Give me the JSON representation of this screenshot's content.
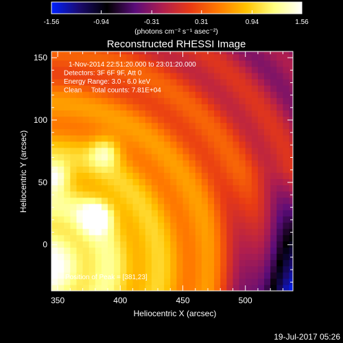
{
  "chart_data": {
    "type": "heatmap",
    "title": "Reconstructed RHESSI Image",
    "xlabel": "Heliocentric X (arcsec)",
    "ylabel": "Heliocentric Y (arcsec)",
    "xlim": [
      345,
      538
    ],
    "ylim": [
      -37,
      155
    ],
    "xticks": [
      350,
      400,
      450,
      500
    ],
    "yticks": [
      0,
      50,
      100,
      150
    ],
    "colorbar": {
      "range": [
        -1.56,
        1.56
      ],
      "ticks": [
        "-1.56",
        "-0.94",
        "-0.31",
        "0.31",
        "0.94",
        "1.56"
      ],
      "units": "(photons cm⁻² s⁻¹ asec⁻²)",
      "colormap": [
        "#0020ff",
        "#1a0a6e",
        "#000000",
        "#5a0c7a",
        "#b01e4e",
        "#e83a14",
        "#ff7a00",
        "#ffc200",
        "#ffff80",
        "#ffffff"
      ]
    },
    "annotations": [
      "1-Nov-2014 22:51:20.000 to 23:01:20.000",
      "Detectors: 3F 6F 9F, Att 0",
      "Energy Range: 3.0 - 6.0 keV",
      "Clean     Total counts: 7.81E+04"
    ],
    "peak_label": "Position of Peak = [381,23]",
    "peak": {
      "x": 381,
      "y": 23,
      "value": 1.56
    },
    "sources": [
      {
        "x": 381,
        "y": 23,
        "value": 1.56
      },
      {
        "x": 347,
        "y": 55,
        "value": 1.4
      },
      {
        "x": 388,
        "y": 75,
        "value": 1.2
      }
    ]
  },
  "footer": {
    "date": "19-Jul-2017 05:26"
  }
}
